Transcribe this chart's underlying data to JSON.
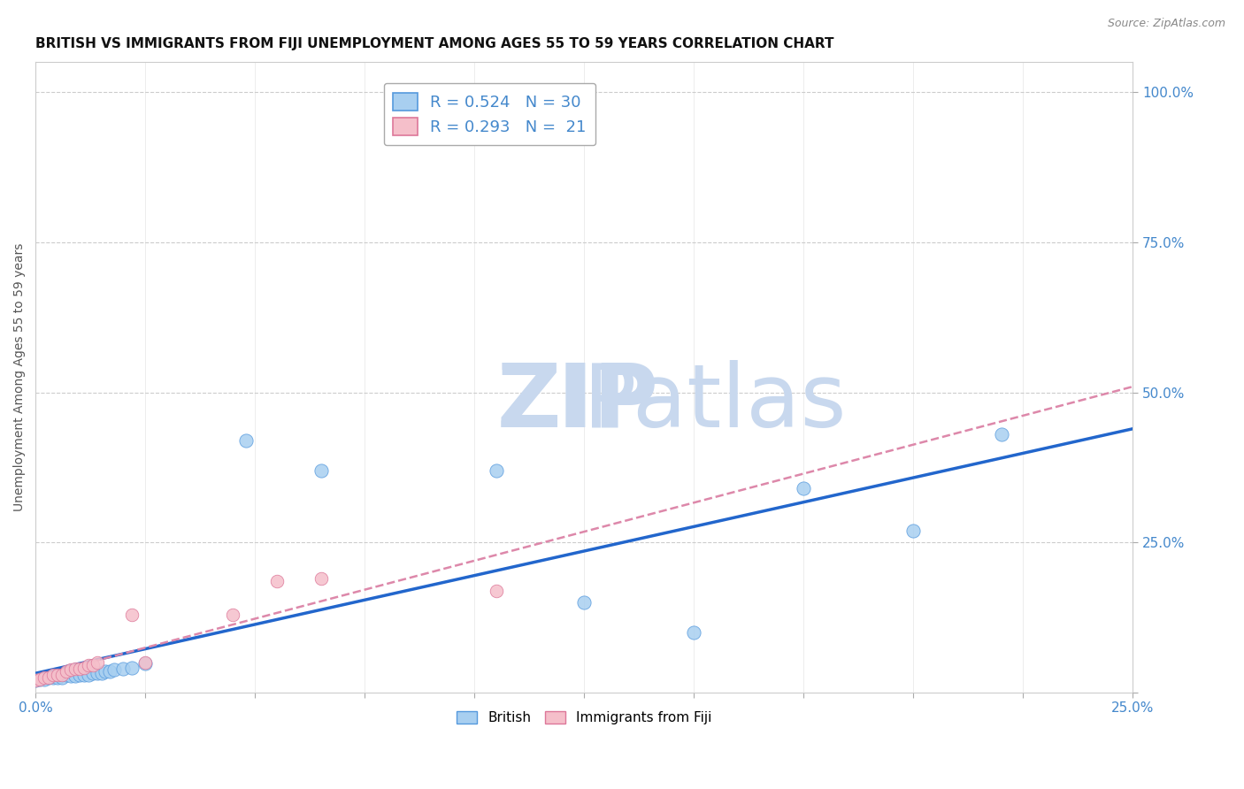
{
  "title": "BRITISH VS IMMIGRANTS FROM FIJI UNEMPLOYMENT AMONG AGES 55 TO 59 YEARS CORRELATION CHART",
  "source": "Source: ZipAtlas.com",
  "ylabel": "Unemployment Among Ages 55 to 59 years",
  "xlim": [
    0.0,
    0.25
  ],
  "ylim": [
    0.0,
    1.05
  ],
  "british_R": 0.524,
  "british_N": 30,
  "fiji_R": 0.293,
  "fiji_N": 21,
  "british_color": "#a8cff0",
  "british_edge_color": "#5599dd",
  "fiji_color": "#f5bfca",
  "fiji_edge_color": "#dd7799",
  "british_line_color": "#2266cc",
  "fiji_line_color": "#dd88aa",
  "watermark_color": "#ddeaf8",
  "grid_color": "#cccccc",
  "tick_color": "#4488cc",
  "title_color": "#111111",
  "british_x": [
    0.0,
    0.001,
    0.002,
    0.003,
    0.004,
    0.005,
    0.006,
    0.007,
    0.008,
    0.009,
    0.01,
    0.011,
    0.012,
    0.013,
    0.014,
    0.015,
    0.016,
    0.017,
    0.018,
    0.02,
    0.022,
    0.025,
    0.048,
    0.065,
    0.105,
    0.125,
    0.15,
    0.175,
    0.2,
    0.22
  ],
  "british_y": [
    0.02,
    0.022,
    0.022,
    0.025,
    0.025,
    0.025,
    0.025,
    0.03,
    0.028,
    0.028,
    0.03,
    0.03,
    0.03,
    0.032,
    0.032,
    0.033,
    0.035,
    0.035,
    0.038,
    0.04,
    0.042,
    0.048,
    0.42,
    0.37,
    0.37,
    0.15,
    0.1,
    0.34,
    0.27,
    0.43
  ],
  "fiji_x": [
    0.0,
    0.001,
    0.002,
    0.003,
    0.004,
    0.005,
    0.006,
    0.007,
    0.008,
    0.009,
    0.01,
    0.011,
    0.012,
    0.013,
    0.014,
    0.022,
    0.025,
    0.045,
    0.055,
    0.065,
    0.105
  ],
  "fiji_y": [
    0.02,
    0.022,
    0.025,
    0.025,
    0.03,
    0.03,
    0.03,
    0.035,
    0.038,
    0.04,
    0.04,
    0.042,
    0.045,
    0.045,
    0.05,
    0.13,
    0.05,
    0.13,
    0.185,
    0.19,
    0.17
  ]
}
